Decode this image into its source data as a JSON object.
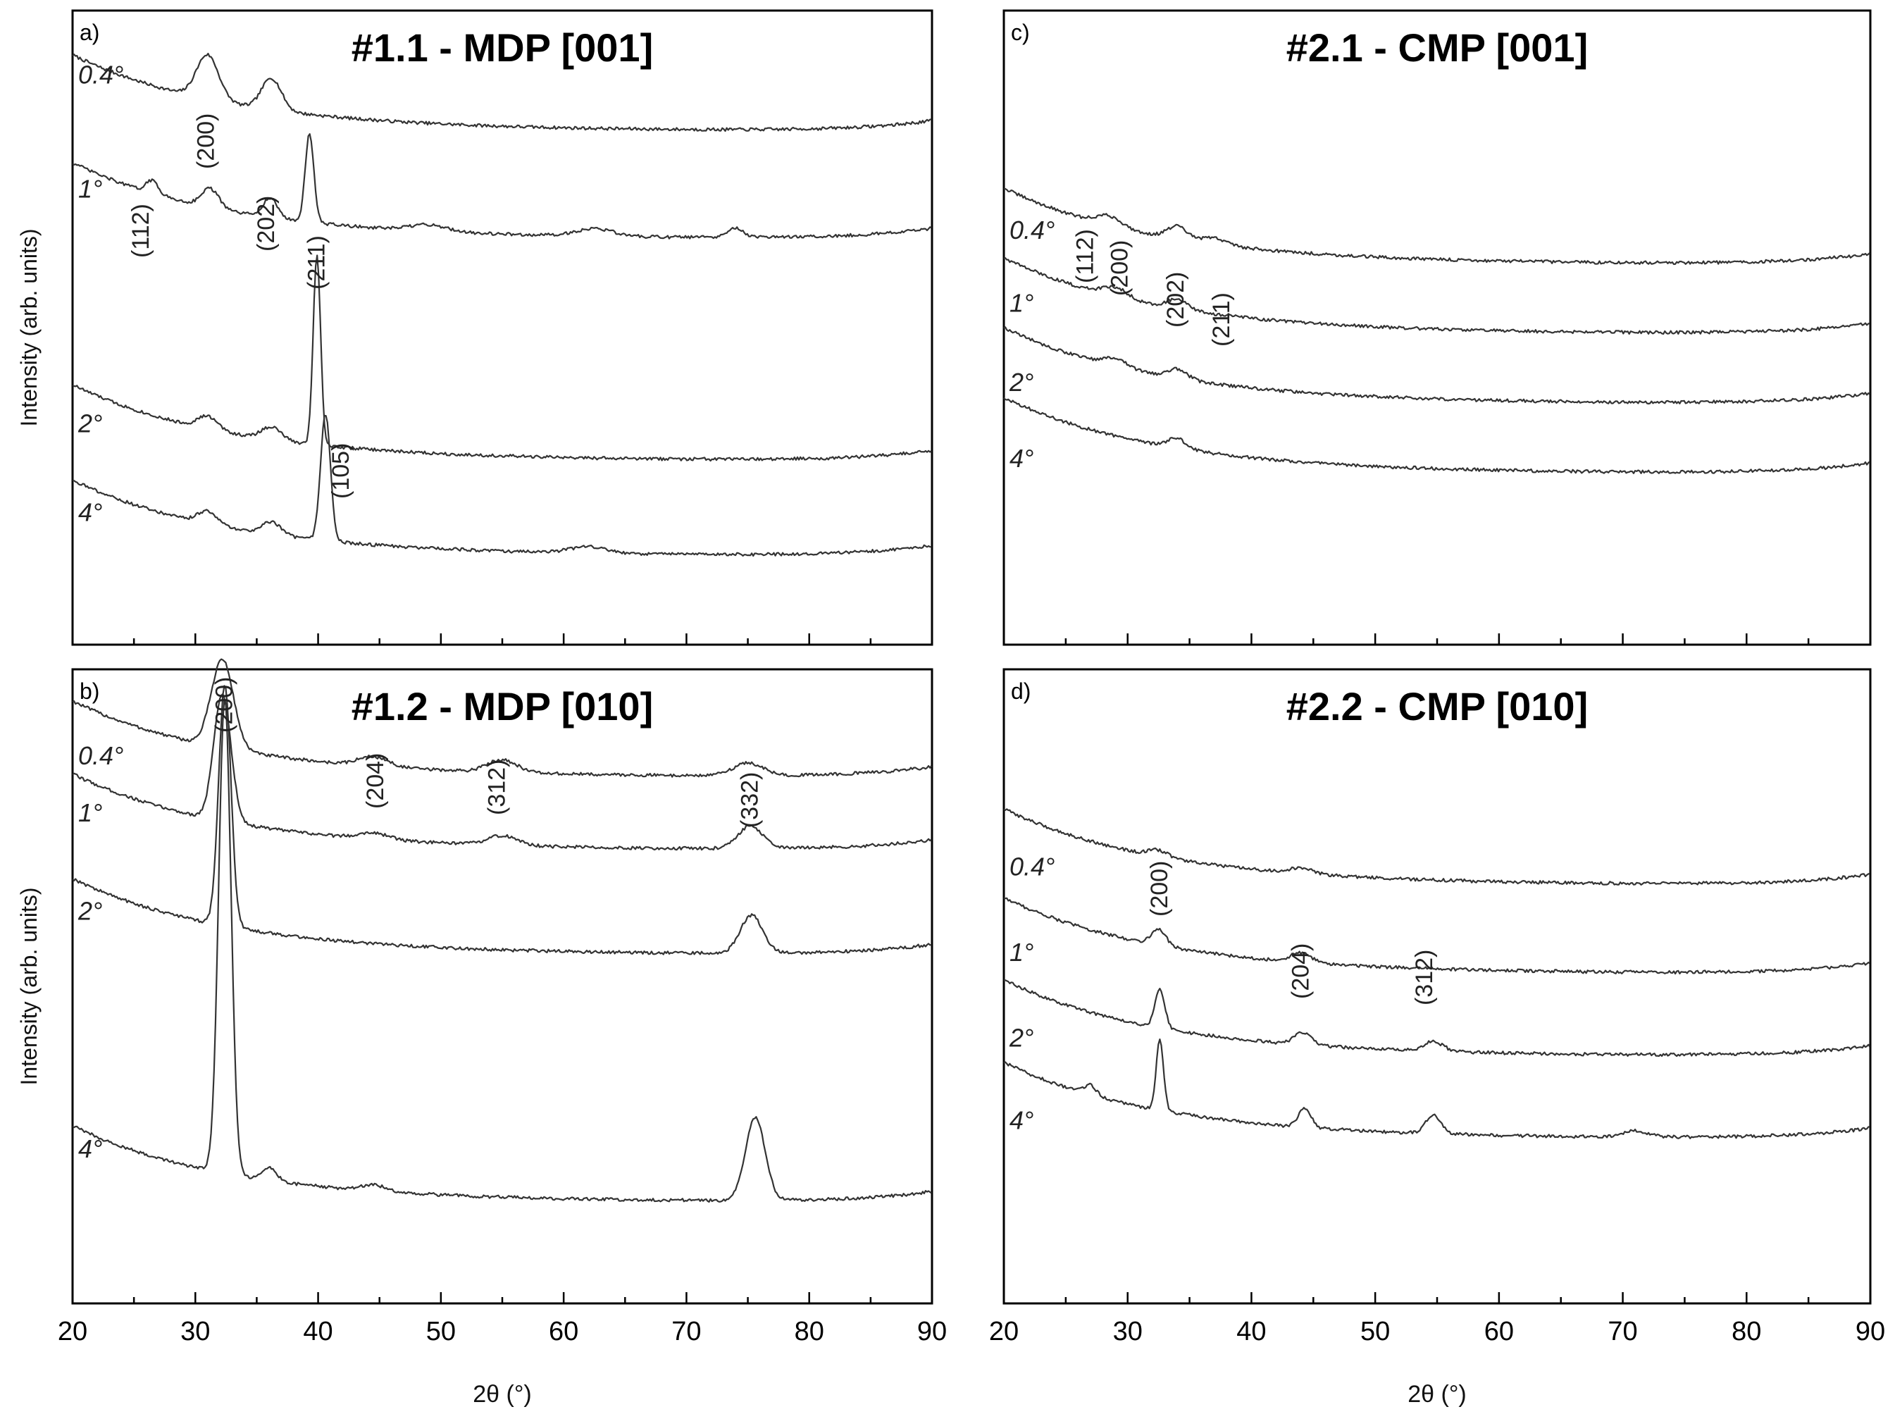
{
  "chart_data": [
    {
      "id": "a",
      "type": "line",
      "panel_letter": "a)",
      "title": "#1.1 - MDP [001]",
      "ylabel": "Intensity (arb. units)",
      "xlabel": "",
      "xlim": [
        20,
        90
      ],
      "ylim": [
        0,
        100
      ],
      "xticks": [
        20,
        30,
        40,
        50,
        60,
        70,
        80,
        90
      ],
      "show_tick_labels": false,
      "series": [
        {
          "name": "0.4°",
          "label_y": 88.5,
          "offset": 83,
          "peaks": [
            [
              31,
              7,
              0.9
            ],
            [
              36.2,
              5,
              0.8
            ]
          ]
        },
        {
          "name": "1°",
          "label_y": 70.5,
          "offset": 66,
          "peaks": [
            [
              26.5,
              2,
              0.5
            ],
            [
              31.2,
              3,
              0.7
            ],
            [
              36.1,
              3,
              0.6
            ],
            [
              39.3,
              14,
              0.35
            ],
            [
              49,
              1,
              1.5
            ],
            [
              62.5,
              1.2,
              1.5
            ],
            [
              74,
              1.5,
              0.6
            ]
          ]
        },
        {
          "name": "2°",
          "label_y": 33.5,
          "offset": 31,
          "peaks": [
            [
              31,
              2,
              0.8
            ],
            [
              36.2,
              2,
              0.8
            ],
            [
              39.9,
              30,
              0.3
            ]
          ]
        },
        {
          "name": "4°",
          "label_y": 19.5,
          "offset": 16,
          "peaks": [
            [
              31,
              2,
              0.8
            ],
            [
              36.2,
              2,
              0.8
            ],
            [
              40.6,
              20,
              0.4
            ],
            [
              62,
              1,
              1.5
            ]
          ]
        }
      ],
      "annotations": [
        {
          "text": "(112)",
          "x": 26.2,
          "y": 61
        },
        {
          "text": "(200)",
          "x": 31.5,
          "y": 75
        },
        {
          "text": "(202)",
          "x": 36.4,
          "y": 62
        },
        {
          "text": "(211)",
          "x": 40.5,
          "y": 56
        },
        {
          "text": "(105)",
          "x": 42.5,
          "y": 23
        }
      ]
    },
    {
      "id": "b",
      "type": "line",
      "panel_letter": "b)",
      "title": "#1.2 - MDP [010]",
      "ylabel": "Intensity (arb. units)",
      "xlabel": "2θ (°)",
      "xlim": [
        20,
        90
      ],
      "ylim": [
        0,
        100
      ],
      "xticks": [
        20,
        30,
        40,
        50,
        60,
        70,
        80,
        90
      ],
      "show_tick_labels": true,
      "series": [
        {
          "name": "0.4°",
          "label_y": 85,
          "offset": 85,
          "peaks": [
            [
              32.2,
              14,
              0.9
            ],
            [
              44.5,
              1.5,
              1.2
            ],
            [
              55,
              2,
              1.2
            ],
            [
              75,
              2,
              1.2
            ]
          ]
        },
        {
          "name": "1°",
          "label_y": 76,
          "offset": 73.5,
          "peaks": [
            [
              32.2,
              20,
              0.7
            ],
            [
              44.5,
              1,
              1.2
            ],
            [
              55,
              1.5,
              1.2
            ],
            [
              75.2,
              3.5,
              1
            ]
          ]
        },
        {
          "name": "2°",
          "label_y": 60.5,
          "offset": 57,
          "peaks": [
            [
              32.4,
              38,
              0.5
            ],
            [
              75.3,
              6,
              0.9
            ]
          ]
        },
        {
          "name": "4°",
          "label_y": 23,
          "offset": 18,
          "peaks": [
            [
              32.4,
              75,
              0.5
            ],
            [
              36,
              2,
              0.6
            ],
            [
              44.5,
              1,
              1
            ],
            [
              75.6,
              13,
              0.8
            ]
          ]
        }
      ],
      "annotations": [
        {
          "text": "(200)",
          "x": 33,
          "y": 90
        },
        {
          "text": "(204)",
          "x": 45.3,
          "y": 78
        },
        {
          "text": "(312)",
          "x": 55.2,
          "y": 77
        },
        {
          "text": "(332)",
          "x": 75.8,
          "y": 75
        }
      ]
    },
    {
      "id": "c",
      "type": "line",
      "panel_letter": "c)",
      "title": "#2.1 - CMP [001]",
      "ylabel": "",
      "xlabel": "",
      "xlim": [
        20,
        90
      ],
      "ylim": [
        0,
        100
      ],
      "xticks": [
        20,
        30,
        40,
        50,
        60,
        70,
        80,
        90
      ],
      "show_tick_labels": false,
      "series": [
        {
          "name": "0.4°",
          "label_y": 64,
          "offset": 62,
          "peaks": [
            [
              28.5,
              1.5,
              1
            ],
            [
              34,
              2,
              0.8
            ],
            [
              37,
              1,
              1
            ]
          ]
        },
        {
          "name": "1°",
          "label_y": 52.5,
          "offset": 51,
          "peaks": [
            [
              29,
              1.5,
              1
            ],
            [
              34,
              1.5,
              0.8
            ]
          ]
        },
        {
          "name": "2°",
          "label_y": 40,
          "offset": 40,
          "peaks": [
            [
              29,
              1.2,
              1
            ],
            [
              34,
              1.5,
              0.8
            ]
          ]
        },
        {
          "name": "4°",
          "label_y": 28,
          "offset": 29,
          "peaks": [
            [
              34,
              1.5,
              0.8
            ]
          ]
        }
      ],
      "annotations": [
        {
          "text": "(112)",
          "x": 27.2,
          "y": 57
        },
        {
          "text": "(200)",
          "x": 30,
          "y": 55
        },
        {
          "text": "(202)",
          "x": 34.5,
          "y": 50
        },
        {
          "text": "(211)",
          "x": 38.2,
          "y": 47
        }
      ]
    },
    {
      "id": "d",
      "type": "line",
      "panel_letter": "d)",
      "title": "#2.2 - CMP [010]",
      "ylabel": "",
      "xlabel": "2θ (°)",
      "xlim": [
        20,
        90
      ],
      "ylim": [
        0,
        100
      ],
      "xticks": [
        20,
        30,
        40,
        50,
        60,
        70,
        80,
        90
      ],
      "show_tick_labels": true,
      "series": [
        {
          "name": "0.4°",
          "label_y": 67.5,
          "offset": 68,
          "peaks": [
            [
              32.5,
              1,
              0.8
            ],
            [
              44,
              0.8,
              1
            ]
          ]
        },
        {
          "name": "1°",
          "label_y": 54,
          "offset": 54,
          "peaks": [
            [
              32.5,
              2.5,
              0.6
            ],
            [
              44,
              1.5,
              0.8
            ]
          ]
        },
        {
          "name": "2°",
          "label_y": 40.5,
          "offset": 41,
          "peaks": [
            [
              32.6,
              6,
              0.4
            ],
            [
              44.2,
              2,
              0.7
            ],
            [
              54.7,
              1.5,
              0.8
            ]
          ]
        },
        {
          "name": "4°",
          "label_y": 27.5,
          "offset": 28,
          "peaks": [
            [
              27,
              1.5,
              0.5
            ],
            [
              32.6,
              11,
              0.3
            ],
            [
              44.3,
              3,
              0.5
            ],
            [
              54.7,
              3,
              0.6
            ],
            [
              71,
              1,
              1
            ]
          ]
        }
      ],
      "annotations": [
        {
          "text": "(200)",
          "x": 33.2,
          "y": 61
        },
        {
          "text": "(204)",
          "x": 44.6,
          "y": 48
        },
        {
          "text": "(312)",
          "x": 54.6,
          "y": 47
        }
      ]
    }
  ]
}
